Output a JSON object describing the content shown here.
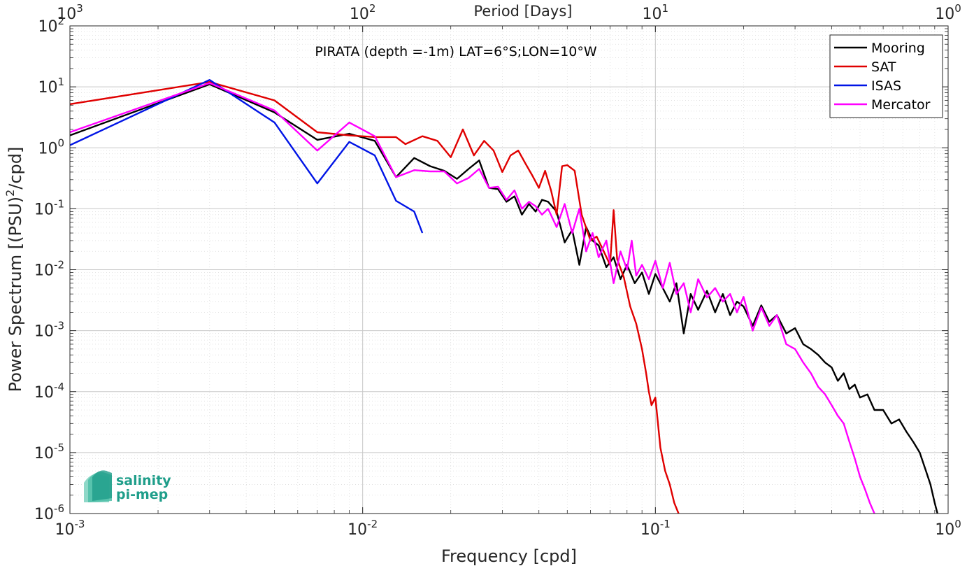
{
  "chart_data": {
    "type": "line",
    "title": "PIRATA (depth =-1m) LAT=6°S;LON=10°W",
    "xlabel": "Frequency [cpd]",
    "ylabel": "Power Spectrum [(PSU)",
    "ylabel_sup": "2",
    "ylabel_tail": "/cpd]",
    "top_xlabel": "Period [Days]",
    "x_scale": "log",
    "y_scale": "log",
    "xlim": [
      0.001,
      1
    ],
    "ylim": [
      1e-06,
      100
    ],
    "grid": true,
    "legend_position": "top-right",
    "x_ticks": [
      {
        "base": "10",
        "exp": "-3",
        "value": 0.001
      },
      {
        "base": "10",
        "exp": "-2",
        "value": 0.01
      },
      {
        "base": "10",
        "exp": "-1",
        "value": 0.1
      },
      {
        "base": "10",
        "exp": "0",
        "value": 1
      }
    ],
    "top_ticks": [
      {
        "base": "10",
        "exp": "3",
        "value": 0.001
      },
      {
        "base": "10",
        "exp": "2",
        "value": 0.01
      },
      {
        "base": "10",
        "exp": "1",
        "value": 0.1
      },
      {
        "base": "10",
        "exp": "0",
        "value": 1
      }
    ],
    "y_ticks": [
      {
        "base": "10",
        "exp": "2",
        "value": 100
      },
      {
        "base": "10",
        "exp": "1",
        "value": 10
      },
      {
        "base": "10",
        "exp": "0",
        "value": 1
      },
      {
        "base": "10",
        "exp": "-1",
        "value": 0.1
      },
      {
        "base": "10",
        "exp": "-2",
        "value": 0.01
      },
      {
        "base": "10",
        "exp": "-3",
        "value": 0.001
      },
      {
        "base": "10",
        "exp": "-4",
        "value": 0.0001
      },
      {
        "base": "10",
        "exp": "-5",
        "value": 1e-05
      },
      {
        "base": "10",
        "exp": "-6",
        "value": 1e-06
      }
    ],
    "series": [
      {
        "name": "Mooring",
        "color": "#000000",
        "points": [
          [
            0.001,
            1.6
          ],
          [
            0.003,
            11
          ],
          [
            0.005,
            3.8
          ],
          [
            0.007,
            1.35
          ],
          [
            0.009,
            1.7
          ],
          [
            0.011,
            1.3
          ],
          [
            0.013,
            0.33
          ],
          [
            0.015,
            0.68
          ],
          [
            0.017,
            0.5
          ],
          [
            0.019,
            0.42
          ],
          [
            0.021,
            0.31
          ],
          [
            0.023,
            0.45
          ],
          [
            0.025,
            0.62
          ],
          [
            0.027,
            0.22
          ],
          [
            0.029,
            0.21
          ],
          [
            0.031,
            0.13
          ],
          [
            0.033,
            0.16
          ],
          [
            0.035,
            0.08
          ],
          [
            0.037,
            0.12
          ],
          [
            0.039,
            0.09
          ],
          [
            0.041,
            0.14
          ],
          [
            0.043,
            0.13
          ],
          [
            0.046,
            0.09
          ],
          [
            0.049,
            0.028
          ],
          [
            0.052,
            0.045
          ],
          [
            0.055,
            0.012
          ],
          [
            0.058,
            0.05
          ],
          [
            0.061,
            0.03
          ],
          [
            0.064,
            0.025
          ],
          [
            0.068,
            0.011
          ],
          [
            0.072,
            0.016
          ],
          [
            0.076,
            0.007
          ],
          [
            0.08,
            0.012
          ],
          [
            0.085,
            0.006
          ],
          [
            0.09,
            0.009
          ],
          [
            0.095,
            0.004
          ],
          [
            0.1,
            0.0085
          ],
          [
            0.106,
            0.005
          ],
          [
            0.112,
            0.003
          ],
          [
            0.118,
            0.006
          ],
          [
            0.125,
            0.0009
          ],
          [
            0.132,
            0.004
          ],
          [
            0.14,
            0.0022
          ],
          [
            0.15,
            0.0045
          ],
          [
            0.16,
            0.002
          ],
          [
            0.17,
            0.004
          ],
          [
            0.18,
            0.0018
          ],
          [
            0.19,
            0.003
          ],
          [
            0.2,
            0.0025
          ],
          [
            0.215,
            0.0012
          ],
          [
            0.23,
            0.0026
          ],
          [
            0.245,
            0.0014
          ],
          [
            0.26,
            0.0018
          ],
          [
            0.28,
            0.0009
          ],
          [
            0.3,
            0.0011
          ],
          [
            0.32,
            0.0006
          ],
          [
            0.34,
            0.0005
          ],
          [
            0.36,
            0.0004
          ],
          [
            0.38,
            0.0003
          ],
          [
            0.4,
            0.00025
          ],
          [
            0.42,
            0.00015
          ],
          [
            0.44,
            0.0002
          ],
          [
            0.46,
            0.00011
          ],
          [
            0.48,
            0.00013
          ],
          [
            0.5,
            8e-05
          ],
          [
            0.53,
            9e-05
          ],
          [
            0.56,
            5e-05
          ],
          [
            0.6,
            5e-05
          ],
          [
            0.64,
            3e-05
          ],
          [
            0.68,
            3.5e-05
          ],
          [
            0.72,
            2.2e-05
          ],
          [
            0.76,
            1.5e-05
          ],
          [
            0.8,
            1e-05
          ],
          [
            0.84,
            5e-06
          ],
          [
            0.87,
            3e-06
          ],
          [
            0.9,
            1.5e-06
          ],
          [
            0.92,
            1e-06
          ]
        ]
      },
      {
        "name": "SAT",
        "color": "#e00000",
        "points": [
          [
            0.001,
            5.2
          ],
          [
            0.003,
            12
          ],
          [
            0.005,
            6
          ],
          [
            0.007,
            1.8
          ],
          [
            0.009,
            1.6
          ],
          [
            0.011,
            1.5
          ],
          [
            0.013,
            1.5
          ],
          [
            0.014,
            1.15
          ],
          [
            0.016,
            1.55
          ],
          [
            0.018,
            1.3
          ],
          [
            0.02,
            0.7
          ],
          [
            0.022,
            2
          ],
          [
            0.024,
            0.75
          ],
          [
            0.026,
            1.3
          ],
          [
            0.028,
            0.9
          ],
          [
            0.03,
            0.4
          ],
          [
            0.032,
            0.75
          ],
          [
            0.034,
            0.9
          ],
          [
            0.036,
            0.55
          ],
          [
            0.038,
            0.35
          ],
          [
            0.04,
            0.22
          ],
          [
            0.042,
            0.42
          ],
          [
            0.044,
            0.2
          ],
          [
            0.046,
            0.08
          ],
          [
            0.048,
            0.5
          ],
          [
            0.05,
            0.52
          ],
          [
            0.053,
            0.42
          ],
          [
            0.056,
            0.08
          ],
          [
            0.06,
            0.03
          ],
          [
            0.063,
            0.035
          ],
          [
            0.066,
            0.022
          ],
          [
            0.07,
            0.012
          ],
          [
            0.072,
            0.095
          ],
          [
            0.074,
            0.015
          ],
          [
            0.078,
            0.0075
          ],
          [
            0.082,
            0.0025
          ],
          [
            0.086,
            0.0013
          ],
          [
            0.09,
            0.0005
          ],
          [
            0.093,
            0.0002
          ],
          [
            0.095,
            0.0001
          ],
          [
            0.097,
            6e-05
          ],
          [
            0.1,
            8e-05
          ],
          [
            0.104,
            1.2e-05
          ],
          [
            0.108,
            5e-06
          ],
          [
            0.112,
            3e-06
          ],
          [
            0.116,
            1.5e-06
          ],
          [
            0.12,
            1e-06
          ]
        ]
      },
      {
        "name": "ISAS",
        "color": "#0014e6",
        "points": [
          [
            0.001,
            1.1
          ],
          [
            0.003,
            13
          ],
          [
            0.005,
            2.6
          ],
          [
            0.007,
            0.26
          ],
          [
            0.009,
            1.25
          ],
          [
            0.011,
            0.75
          ],
          [
            0.013,
            0.135
          ],
          [
            0.015,
            0.09
          ],
          [
            0.016,
            0.04
          ]
        ]
      },
      {
        "name": "Mercator",
        "color": "#ff00ff",
        "points": [
          [
            0.001,
            1.8
          ],
          [
            0.003,
            11.5
          ],
          [
            0.005,
            4.1
          ],
          [
            0.007,
            0.9
          ],
          [
            0.009,
            2.6
          ],
          [
            0.011,
            1.55
          ],
          [
            0.013,
            0.33
          ],
          [
            0.015,
            0.43
          ],
          [
            0.017,
            0.41
          ],
          [
            0.019,
            0.41
          ],
          [
            0.021,
            0.26
          ],
          [
            0.023,
            0.32
          ],
          [
            0.025,
            0.45
          ],
          [
            0.027,
            0.22
          ],
          [
            0.029,
            0.23
          ],
          [
            0.031,
            0.14
          ],
          [
            0.033,
            0.2
          ],
          [
            0.035,
            0.1
          ],
          [
            0.037,
            0.13
          ],
          [
            0.039,
            0.11
          ],
          [
            0.041,
            0.08
          ],
          [
            0.043,
            0.1
          ],
          [
            0.046,
            0.05
          ],
          [
            0.049,
            0.12
          ],
          [
            0.052,
            0.04
          ],
          [
            0.055,
            0.1
          ],
          [
            0.058,
            0.02
          ],
          [
            0.061,
            0.04
          ],
          [
            0.064,
            0.016
          ],
          [
            0.068,
            0.03
          ],
          [
            0.072,
            0.006
          ],
          [
            0.076,
            0.02
          ],
          [
            0.08,
            0.01
          ],
          [
            0.083,
            0.03
          ],
          [
            0.086,
            0.008
          ],
          [
            0.09,
            0.012
          ],
          [
            0.095,
            0.007
          ],
          [
            0.1,
            0.014
          ],
          [
            0.106,
            0.005
          ],
          [
            0.112,
            0.013
          ],
          [
            0.118,
            0.004
          ],
          [
            0.125,
            0.006
          ],
          [
            0.132,
            0.002
          ],
          [
            0.14,
            0.007
          ],
          [
            0.15,
            0.0035
          ],
          [
            0.16,
            0.005
          ],
          [
            0.17,
            0.003
          ],
          [
            0.18,
            0.004
          ],
          [
            0.19,
            0.002
          ],
          [
            0.2,
            0.0036
          ],
          [
            0.215,
            0.001
          ],
          [
            0.23,
            0.0024
          ],
          [
            0.245,
            0.0012
          ],
          [
            0.26,
            0.0018
          ],
          [
            0.28,
            0.0006
          ],
          [
            0.3,
            0.0005
          ],
          [
            0.32,
            0.0003
          ],
          [
            0.34,
            0.0002
          ],
          [
            0.36,
            0.00012
          ],
          [
            0.38,
            9e-05
          ],
          [
            0.4,
            6e-05
          ],
          [
            0.42,
            4e-05
          ],
          [
            0.44,
            3e-05
          ],
          [
            0.46,
            1.5e-05
          ],
          [
            0.48,
            8e-06
          ],
          [
            0.5,
            4e-06
          ],
          [
            0.52,
            2.5e-06
          ],
          [
            0.54,
            1.5e-06
          ],
          [
            0.56,
            1e-06
          ]
        ]
      }
    ]
  },
  "logo": {
    "line1": "salinity",
    "line2": "pi-mep",
    "color": "#1f9e8a"
  }
}
